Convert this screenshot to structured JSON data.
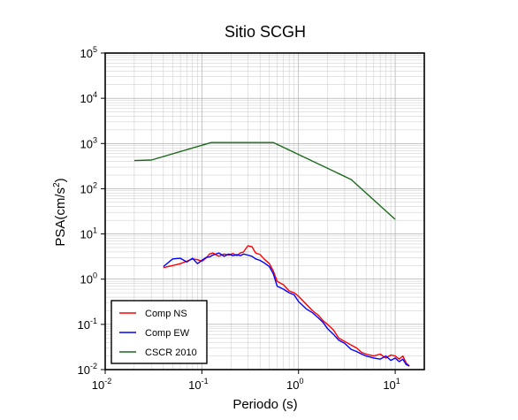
{
  "chart_data": {
    "type": "line",
    "title": "Sitio SCGH",
    "xlabel": "Periodo (s)",
    "ylabel_base": "PSA(cm/s",
    "ylabel_sup": "2",
    "ylabel_close": ")",
    "x_scale": "log",
    "y_scale": "log",
    "xlim": [
      0.01,
      20
    ],
    "ylim": [
      0.01,
      100000
    ],
    "x_major_ticks": [
      0.01,
      0.1,
      1,
      10
    ],
    "y_major_ticks": [
      0.01,
      0.1,
      1,
      10,
      100,
      1000,
      10000,
      100000
    ],
    "grid": true,
    "legend_position": "bottom-left",
    "series": [
      {
        "name": "Comp NS",
        "color": "#ff0000",
        "x": [
          0.04,
          0.05,
          0.06,
          0.07,
          0.08,
          0.09,
          0.1,
          0.11,
          0.12,
          0.13,
          0.15,
          0.17,
          0.19,
          0.21,
          0.23,
          0.25,
          0.27,
          0.3,
          0.33,
          0.36,
          0.4,
          0.44,
          0.5,
          0.55,
          0.6,
          0.7,
          0.8,
          0.9,
          1.0,
          1.2,
          1.4,
          1.6,
          1.8,
          2.0,
          2.3,
          2.6,
          3.0,
          3.5,
          4.0,
          4.5,
          5.0,
          6.0,
          7.0,
          8.0,
          9.0,
          10.0,
          11.0,
          12.0,
          13.0,
          14.0
        ],
        "y": [
          1.8,
          2.0,
          2.2,
          2.5,
          2.8,
          2.7,
          2.5,
          2.9,
          3.6,
          3.8,
          3.2,
          3.6,
          3.4,
          3.7,
          3.3,
          3.8,
          4.0,
          5.5,
          5.2,
          3.8,
          3.5,
          2.8,
          2.2,
          1.5,
          0.9,
          0.75,
          0.55,
          0.5,
          0.42,
          0.28,
          0.2,
          0.16,
          0.12,
          0.1,
          0.075,
          0.05,
          0.042,
          0.035,
          0.03,
          0.024,
          0.022,
          0.02,
          0.022,
          0.018,
          0.021,
          0.02,
          0.017,
          0.02,
          0.014,
          0.012
        ]
      },
      {
        "name": "Comp EW",
        "color": "#0000ff",
        "x": [
          0.04,
          0.05,
          0.06,
          0.07,
          0.08,
          0.09,
          0.1,
          0.11,
          0.12,
          0.13,
          0.15,
          0.17,
          0.19,
          0.21,
          0.23,
          0.25,
          0.27,
          0.3,
          0.33,
          0.36,
          0.4,
          0.44,
          0.5,
          0.55,
          0.6,
          0.7,
          0.8,
          0.9,
          1.0,
          1.2,
          1.4,
          1.6,
          1.8,
          2.0,
          2.3,
          2.6,
          3.0,
          3.5,
          4.0,
          4.5,
          5.0,
          6.0,
          7.0,
          8.0,
          9.0,
          10.0,
          11.0,
          12.0,
          13.0,
          14.0
        ],
        "y": [
          1.9,
          2.8,
          2.9,
          2.4,
          2.9,
          2.2,
          2.6,
          3.0,
          3.1,
          3.4,
          3.8,
          3.2,
          3.6,
          3.3,
          3.5,
          3.3,
          3.6,
          3.4,
          3.2,
          2.8,
          2.6,
          2.3,
          1.9,
          1.3,
          0.7,
          0.6,
          0.5,
          0.45,
          0.32,
          0.22,
          0.18,
          0.14,
          0.11,
          0.08,
          0.06,
          0.045,
          0.038,
          0.028,
          0.025,
          0.022,
          0.02,
          0.018,
          0.017,
          0.02,
          0.016,
          0.018,
          0.015,
          0.017,
          0.013,
          0.012
        ]
      },
      {
        "name": "CSCR 2010",
        "color": "#1a6a1a",
        "x": [
          0.02,
          0.03,
          0.125,
          0.55,
          3.5,
          10.0
        ],
        "y": [
          420,
          430,
          1050,
          1050,
          160,
          21
        ]
      }
    ]
  }
}
